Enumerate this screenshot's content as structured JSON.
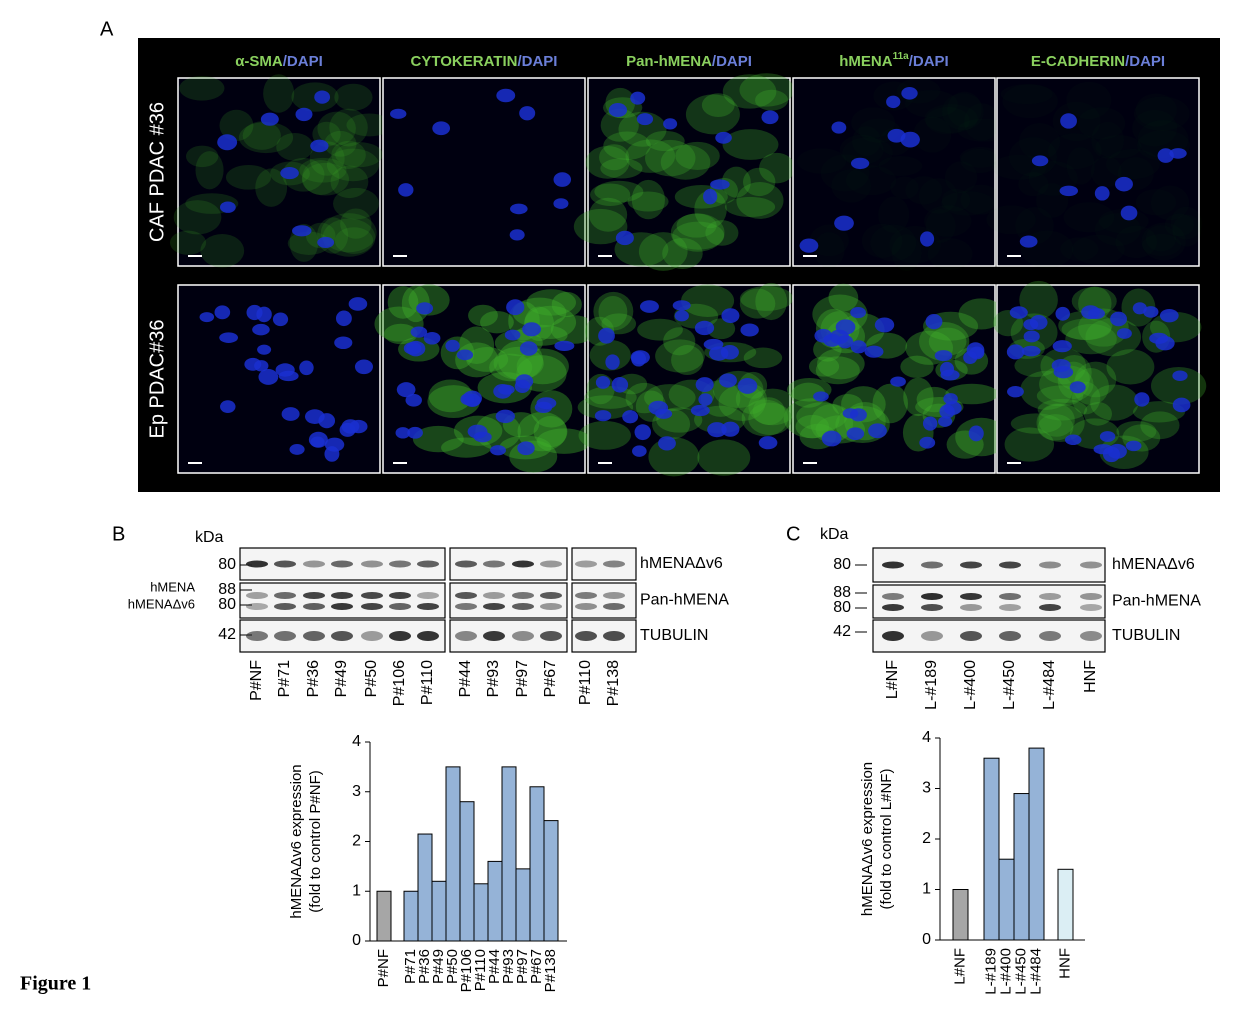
{
  "figure_label": "Figure 1",
  "panel_a": {
    "label": "A",
    "columns": [
      {
        "marker": "α-SMA",
        "counterstain": "/DAPI"
      },
      {
        "marker": "CYTOKERATIN",
        "counterstain": "/DAPI"
      },
      {
        "marker": "Pan-hMENA",
        "counterstain": "/DAPI"
      },
      {
        "marker": "hMENA",
        "sup": "11a",
        "counterstain": "/DAPI"
      },
      {
        "marker": "E-CADHERIN",
        "counterstain": "/DAPI"
      }
    ],
    "rows": [
      "CAF PDAC #36",
      "Ep PDAC#36"
    ]
  },
  "panel_b": {
    "label": "B",
    "kda": "kDa",
    "markers": [
      "80",
      "hMENA",
      "88",
      "hMENAΔv6",
      "80",
      "42"
    ],
    "bands": [
      "hMENAΔv6",
      "Pan-hMENA",
      "TUBULIN"
    ],
    "lanes": [
      "P#NF",
      "P#71",
      "P#36",
      "P#49",
      "P#50",
      "P#106",
      "P#110",
      "P#44",
      "P#93",
      "P#97",
      "P#67",
      "P#110",
      "P#138"
    ]
  },
  "panel_c": {
    "label": "C",
    "kda": "kDa",
    "markers": [
      "80",
      "88",
      "80",
      "42"
    ],
    "bands": [
      "hMENAΔv6",
      "Pan-hMENA",
      "TUBULIN"
    ],
    "lanes": [
      "L#NF",
      "L-#189",
      "L-#400",
      "L-#450",
      "L-#484",
      "HNF"
    ]
  },
  "chart_data": [
    {
      "type": "bar",
      "ylabel": [
        "hMENAΔv6 expression",
        "(fold  to control P#NF)"
      ],
      "categories": [
        "P#NF",
        "P#71",
        "P#36",
        "P#49",
        "P#50",
        "P#106",
        "P#110",
        "P#44",
        "P#93",
        "P#97",
        "P#67",
        "P#138"
      ],
      "values": [
        1,
        1.0,
        2.15,
        1.2,
        3.5,
        2.8,
        1.15,
        1.6,
        3.5,
        1.45,
        3.1,
        2.42
      ],
      "colors": [
        "#a6a6a6",
        "#95b3d7",
        "#95b3d7",
        "#95b3d7",
        "#95b3d7",
        "#95b3d7",
        "#95b3d7",
        "#95b3d7",
        "#95b3d7",
        "#95b3d7",
        "#95b3d7",
        "#95b3d7"
      ],
      "ylim": [
        0,
        4
      ],
      "yticks": [
        0,
        1,
        2,
        3,
        4
      ]
    },
    {
      "type": "bar",
      "ylabel": [
        "hMENAΔv6 expression",
        "(fold  to control L#NF)"
      ],
      "categories": [
        "L#NF",
        "L-#189",
        "L-#400",
        "L-#450",
        "L-#484",
        "HNF"
      ],
      "values": [
        1,
        3.6,
        1.6,
        2.9,
        3.8,
        1.4
      ],
      "colors": [
        "#a6a6a6",
        "#95b3d7",
        "#95b3d7",
        "#95b3d7",
        "#95b3d7",
        "#dbeef4"
      ],
      "ylim": [
        0,
        4
      ],
      "yticks": [
        0,
        1,
        2,
        3,
        4
      ]
    }
  ]
}
